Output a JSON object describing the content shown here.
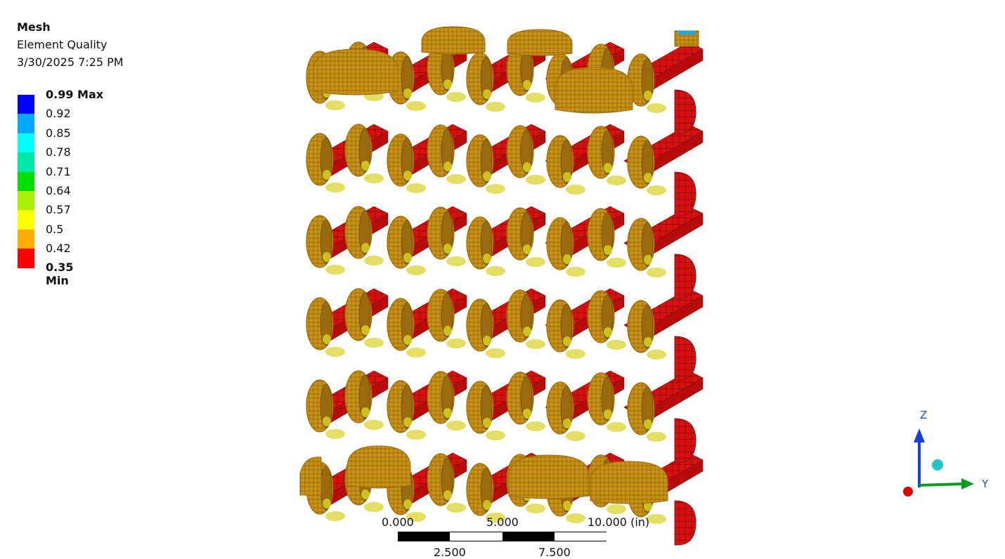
{
  "header": {
    "title": "Mesh",
    "subtitle": "Element Quality",
    "timestamp": "3/30/2025 7:25 PM"
  },
  "legend": {
    "levels": [
      {
        "label": "0.99 Max",
        "color": "#0000ff",
        "bold": true
      },
      {
        "label": "0.92",
        "color": "#00a8ff",
        "bold": false
      },
      {
        "label": "0.85",
        "color": "#00ffff",
        "bold": false
      },
      {
        "label": "0.78",
        "color": "#00e8a8",
        "bold": false
      },
      {
        "label": "0.71",
        "color": "#00e000",
        "bold": false
      },
      {
        "label": "0.64",
        "color": "#a8f000",
        "bold": false
      },
      {
        "label": "0.57",
        "color": "#ffff00",
        "bold": false
      },
      {
        "label": "0.5",
        "color": "#ffa800",
        "bold": false
      },
      {
        "label": "0.42",
        "color": "#ff0000",
        "bold": false
      }
    ],
    "min_label": "0.35 Min"
  },
  "scale_bar": {
    "top_labels": [
      "0.000",
      "5.000",
      "10.000 (in)"
    ],
    "bottom_labels": [
      "2.500",
      "7.500"
    ]
  },
  "triad": {
    "z_label": "Z",
    "y_label": "Y"
  },
  "colors": {
    "shell_red": "#d81010",
    "coil_tan": "#c99214",
    "coil_dark": "#9a6a0c",
    "yellow_patch": "#d8d020"
  }
}
